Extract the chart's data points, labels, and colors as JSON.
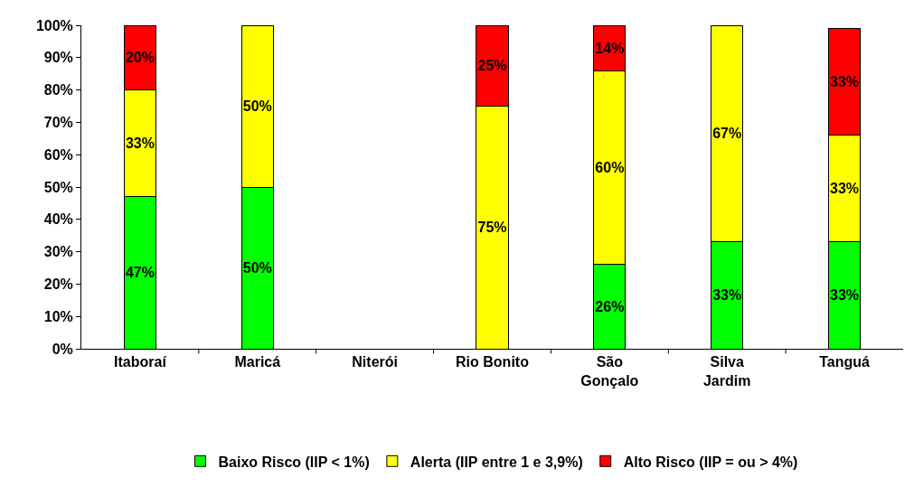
{
  "chart_data": {
    "type": "bar",
    "stacked": true,
    "categories": [
      "Itaboraí",
      "Maricá",
      "Niterói",
      "Rio Bonito",
      "São Gonçalo",
      "Silva Jardim",
      "Tanguá"
    ],
    "series": [
      {
        "name": "Baixo Risco (IIP < 1%)",
        "color": "#00ff00",
        "values": [
          47,
          50,
          null,
          null,
          26,
          33,
          33
        ],
        "value_labels": [
          "47%",
          "50%",
          null,
          null,
          "26%",
          "33%",
          "33%"
        ]
      },
      {
        "name": "Alerta (IIP entre 1 e 3,9%)",
        "color": "#ffff00",
        "values": [
          33,
          50,
          null,
          75,
          60,
          67,
          33
        ],
        "value_labels": [
          "33%",
          "50%",
          null,
          "75%",
          "60%",
          "67%",
          "33%"
        ]
      },
      {
        "name": "Alto Risco (IIP = ou > 4%)",
        "color": "#ff0000",
        "values": [
          20,
          null,
          null,
          25,
          14,
          null,
          33
        ],
        "value_labels": [
          "20%",
          null,
          null,
          "25%",
          "14%",
          null,
          "33%"
        ]
      }
    ],
    "ylim": [
      0,
      100
    ],
    "yticks": [
      {
        "value": 0,
        "label": "0%"
      },
      {
        "value": 10,
        "label": "10%"
      },
      {
        "value": 20,
        "label": "20%"
      },
      {
        "value": 30,
        "label": "30%"
      },
      {
        "value": 40,
        "label": "40%"
      },
      {
        "value": 50,
        "label": "50%"
      },
      {
        "value": 60,
        "label": "60%"
      },
      {
        "value": 70,
        "label": "70%"
      },
      {
        "value": 80,
        "label": "80%"
      },
      {
        "value": 90,
        "label": "90%"
      },
      {
        "value": 100,
        "label": "100%"
      }
    ],
    "grid": false,
    "legend": "bottom"
  }
}
